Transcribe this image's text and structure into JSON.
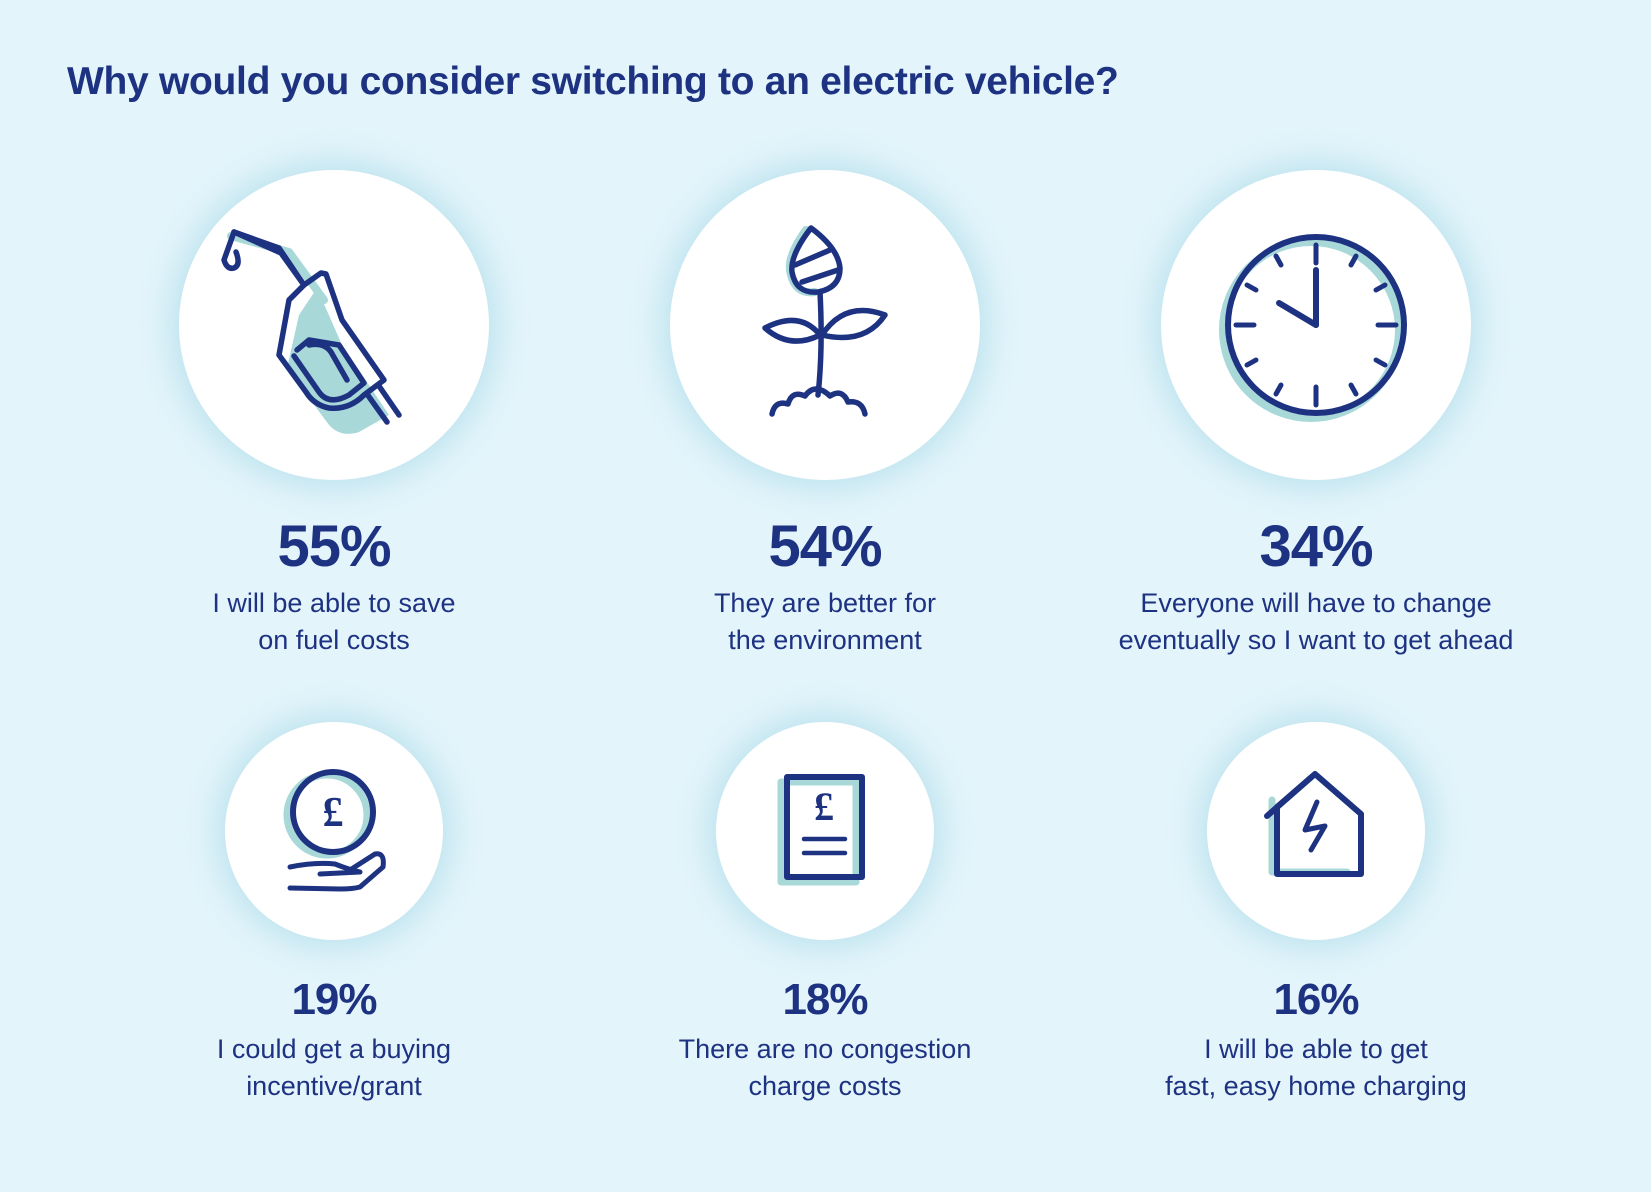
{
  "title": "Why would you consider switching to an electric vehicle?",
  "colors": {
    "background": "#e3f4fb",
    "navy": "#1e3282",
    "shadow": "#a8d8d8"
  },
  "items": [
    {
      "icon": "fuel-nozzle-icon",
      "percent": "55%",
      "value": 55,
      "line1": "I will be able to save",
      "line2": "on fuel costs"
    },
    {
      "icon": "plant-icon",
      "percent": "54%",
      "value": 54,
      "line1": "They are better for",
      "line2": "the environment"
    },
    {
      "icon": "clock-icon",
      "percent": "34%",
      "value": 34,
      "line1": "Everyone will have to change",
      "line2": "eventually so I want to get ahead"
    },
    {
      "icon": "coin-in-hand-icon",
      "percent": "19%",
      "value": 19,
      "line1": "I could get a buying",
      "line2": "incentive/grant"
    },
    {
      "icon": "pound-document-icon",
      "percent": "18%",
      "value": 18,
      "line1": "There are no congestion",
      "line2": "charge costs"
    },
    {
      "icon": "home-charging-icon",
      "percent": "16%",
      "value": 16,
      "line1": "I will be able to get",
      "line2": "fast, easy home charging"
    }
  ]
}
